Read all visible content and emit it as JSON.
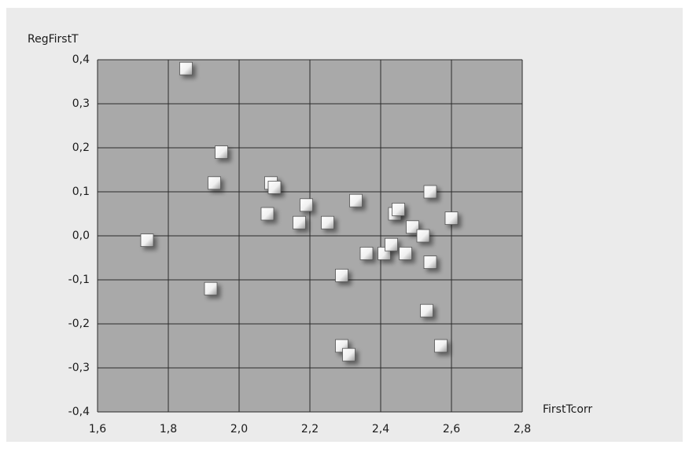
{
  "chart_data": {
    "type": "scatter",
    "x_label": "FirstTcorr",
    "y_label": "RegFirstT",
    "xlim": [
      1.6,
      2.8
    ],
    "ylim": [
      -0.4,
      0.4
    ],
    "xticks": [
      {
        "value": 1.6,
        "label": "1,6"
      },
      {
        "value": 1.8,
        "label": "1,8"
      },
      {
        "value": 2.0,
        "label": "2,0"
      },
      {
        "value": 2.2,
        "label": "2,2"
      },
      {
        "value": 2.4,
        "label": "2,4"
      },
      {
        "value": 2.6,
        "label": "2,6"
      },
      {
        "value": 2.8,
        "label": "2,8"
      }
    ],
    "yticks": [
      {
        "value": -0.4,
        "label": "-0,4"
      },
      {
        "value": -0.3,
        "label": "-0,3"
      },
      {
        "value": -0.2,
        "label": "-0,2"
      },
      {
        "value": -0.1,
        "label": "-0,1"
      },
      {
        "value": 0.0,
        "label": "0,0"
      },
      {
        "value": 0.1,
        "label": "0,1"
      },
      {
        "value": 0.2,
        "label": "0,2"
      },
      {
        "value": 0.3,
        "label": "0,3"
      },
      {
        "value": 0.4,
        "label": "0,4"
      }
    ],
    "grid": true,
    "color": "#f2f2f2",
    "x": [
      1.85,
      1.95,
      1.93,
      2.09,
      2.1,
      2.08,
      2.19,
      2.17,
      2.25,
      2.33,
      1.74,
      1.92,
      2.29,
      2.36,
      2.41,
      2.43,
      2.44,
      2.45,
      2.47,
      2.49,
      2.52,
      2.54,
      2.54,
      2.6,
      2.53,
      2.57,
      2.29,
      2.31
    ],
    "y": [
      0.38,
      0.19,
      0.12,
      0.12,
      0.11,
      0.05,
      0.07,
      0.03,
      0.03,
      0.08,
      -0.01,
      -0.12,
      -0.09,
      -0.04,
      -0.04,
      -0.02,
      0.05,
      0.06,
      -0.04,
      0.02,
      0.0,
      0.1,
      -0.06,
      0.04,
      -0.17,
      -0.25,
      -0.25,
      -0.27
    ]
  }
}
